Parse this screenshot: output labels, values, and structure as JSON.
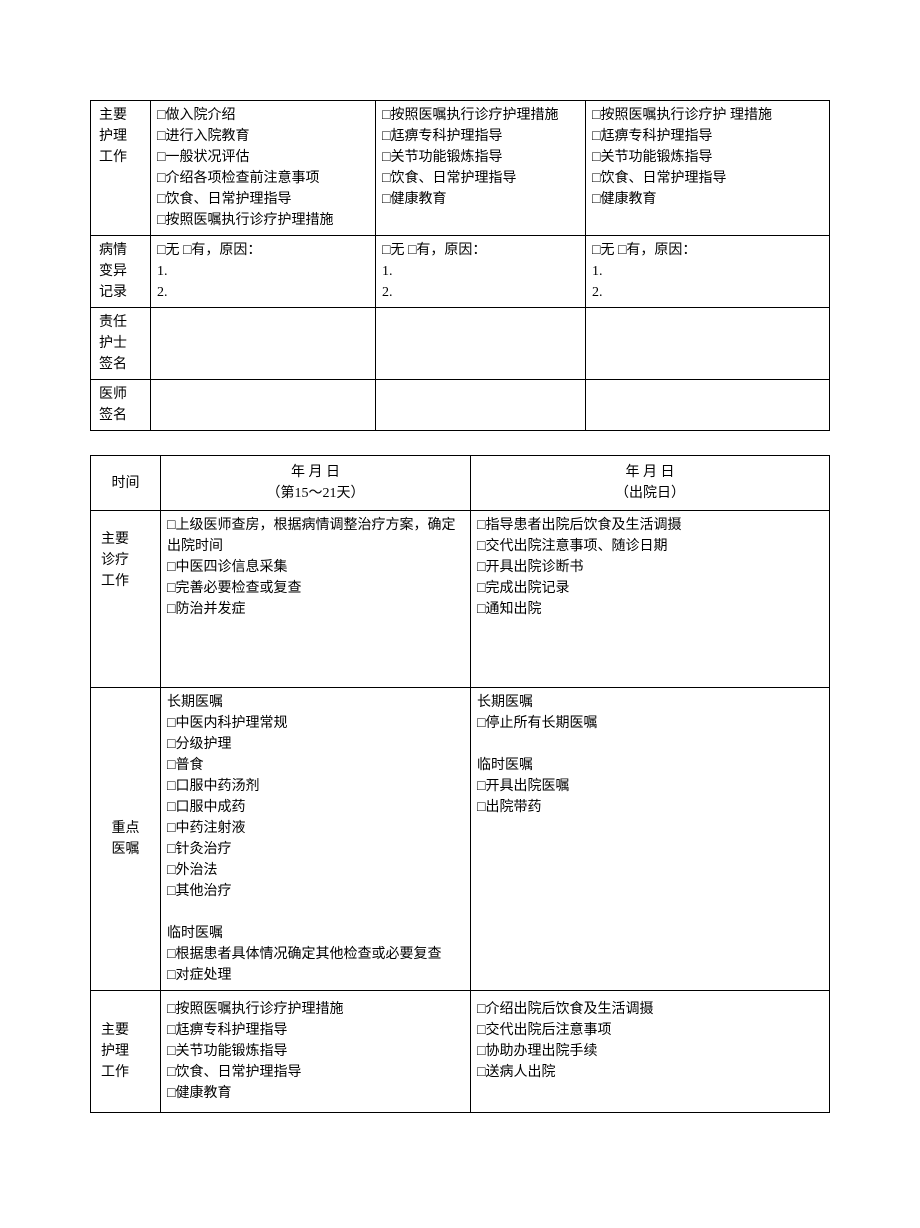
{
  "table1": {
    "row_nursing": {
      "label": "主要\n护理\n工作",
      "c1": "□做入院介绍\n□进行入院教育\n□一般状况评估\n□介绍各项检查前注意事项\n□饮食、日常护理指导\n□按照医嘱执行诊疗护理措施",
      "c2": "□按照医嘱执行诊疗护理措施\n□尪痹专科护理指导\n□关节功能锻炼指导\n□饮食、日常护理指导\n□健康教育",
      "c3": "□按照医嘱执行诊疗护  理措施\n□尪痹专科护理指导\n□关节功能锻炼指导\n□饮食、日常护理指导\n□健康教育"
    },
    "row_variation": {
      "label": "病情\n变异\n记录",
      "c1": "□无 □有，原因：\n1.\n2.",
      "c2": "□无 □有，原因：\n1.\n2.",
      "c3": "□无  □有，原因：\n1.\n2."
    },
    "row_nurse_sign": {
      "label": "责任\n护士\n签名",
      "c1": "",
      "c2": "",
      "c3": ""
    },
    "row_doctor_sign": {
      "label": "医师\n签名",
      "c1": "",
      "c2": "",
      "c3": ""
    }
  },
  "table2": {
    "header": {
      "label": "时间",
      "c1": "年  月  日\n（第15～21天）",
      "c2": "年  月  日\n（出院日）"
    },
    "row_main_work": {
      "label": "主要\n诊疗\n工作",
      "c1": "□上级医师查房，根据病情调整治疗方案，确定出院时间\n□中医四诊信息采集\n□完善必要检查或复查\n□防治并发症\n\n\n\n",
      "c2": "□指导患者出院后饮食及生活调摄\n□交代出院注意事项、随诊日期\n□开具出院诊断书\n□完成出院记录\n□通知出院"
    },
    "row_key_orders": {
      "label": "重点\n医嘱",
      "c1": "长期医嘱\n□中医内科护理常规\n□分级护理\n□普食\n□口服中药汤剂\n□口服中成药\n□中药注射液\n□针灸治疗\n□外治法\n□其他治疗\n\n临时医嘱\n□根据患者具体情况确定其他检查或必要复查\n□对症处理",
      "c2": "长期医嘱\n□停止所有长期医嘱\n\n临时医嘱\n□开具出院医嘱\n□出院带药"
    },
    "row_nursing2": {
      "label": "主要\n护理\n工作",
      "c1": "□按照医嘱执行诊疗护理措施\n□尪痹专科护理指导\n□关节功能锻炼指导\n□饮食、日常护理指导\n□健康教育",
      "c2": "□介绍出院后饮食及生活调摄\n□交代出院后注意事项\n□协助办理出院手续\n□送病人出院"
    }
  }
}
